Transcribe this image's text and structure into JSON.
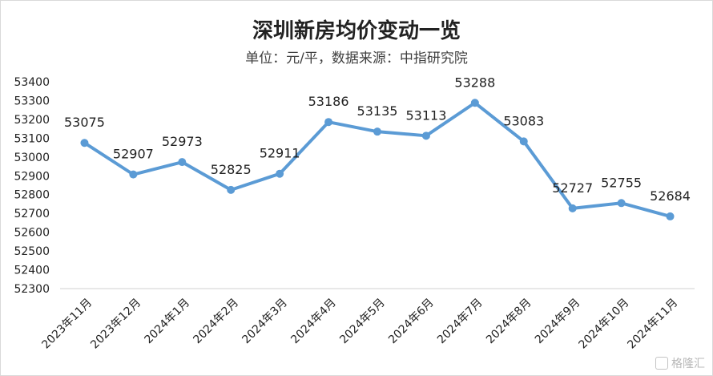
{
  "chart_data": {
    "type": "line",
    "title": "深圳新房均价变动一览",
    "subtitle": "单位：元/平，数据来源：中指研究院",
    "categories": [
      "2023年11月",
      "2023年12月",
      "2024年1月",
      "2024年2月",
      "2024年3月",
      "2024年4月",
      "2024年5月",
      "2024年6月",
      "2024年7月",
      "2024年8月",
      "2024年9月",
      "2024年10月",
      "2024年11月"
    ],
    "series": [
      {
        "values": [
          53075,
          52907,
          52973,
          52825,
          52911,
          53186,
          53135,
          53113,
          53288,
          53083,
          52727,
          52755,
          52684
        ]
      }
    ],
    "ylim": [
      52300,
      53400
    ],
    "ytick_step": 100,
    "grid": false,
    "legend": "none",
    "colors": {
      "line": "#5b9bd5",
      "marker": "#5b9bd5"
    }
  },
  "watermark": {
    "text": "格隆汇",
    "icon": "gelonghui-logo-icon"
  }
}
